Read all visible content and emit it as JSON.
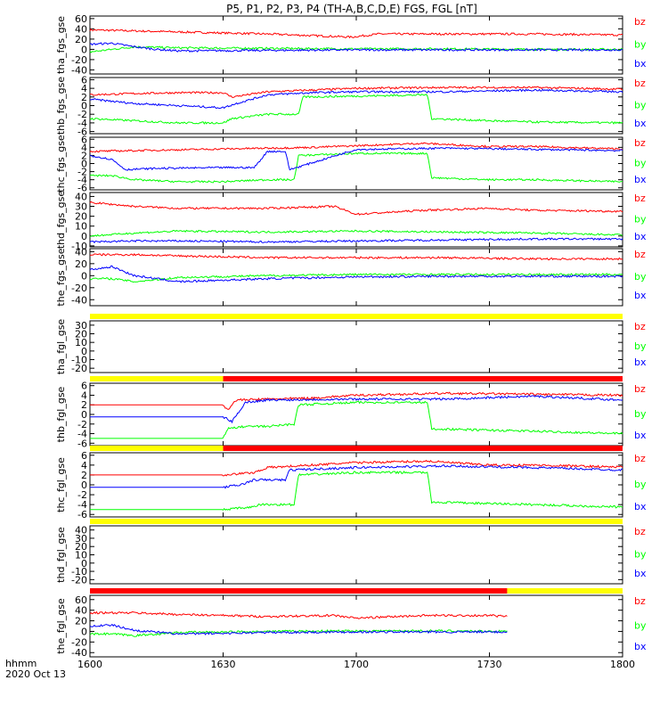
{
  "title": "P5, P1, P2, P3, P4 (TH-A,B,C,D,E) FGS, FGL [nT]",
  "footer": {
    "time_format": "hhmm",
    "date": "2020 Oct 13"
  },
  "colors": {
    "bz": "#ff0000",
    "by": "#00ff00",
    "bx": "#0000ff",
    "bar_yellow": "#ffff00",
    "bar_red": "#ff0000",
    "frame": "#000000"
  },
  "chart_data": {
    "type": "line",
    "x_axis": {
      "tick_labels": [
        "1600",
        "1630",
        "1700",
        "1730",
        "1800"
      ],
      "tick_values_min": [
        0,
        30,
        60,
        90,
        120
      ],
      "range_min": [
        0,
        120
      ]
    },
    "panels": [
      {
        "ylabel": "tha_fgs_gse",
        "ylim": [
          -48,
          65
        ],
        "yticks": [
          60,
          40,
          20,
          0,
          -20,
          -40
        ],
        "ytick_labels": [
          "60",
          "40",
          "20",
          "0",
          "-20",
          "-40"
        ],
        "series": [
          {
            "name": "bz",
            "color": "#ff0000",
            "x": [
              0,
              10,
              20,
              40,
              59,
              65,
              80,
              100,
              120
            ],
            "y": [
              38,
              36,
              34,
              30,
              24,
              30,
              30,
              30,
              28
            ]
          },
          {
            "name": "by",
            "color": "#00ff00",
            "x": [
              0,
              5,
              10,
              20,
              40,
              60,
              80,
              100,
              120
            ],
            "y": [
              -5,
              0,
              5,
              3,
              2,
              1,
              1,
              0,
              0
            ]
          },
          {
            "name": "bx",
            "color": "#0000ff",
            "x": [
              0,
              5,
              10,
              15,
              20,
              40,
              60,
              80,
              100,
              120
            ],
            "y": [
              10,
              12,
              5,
              0,
              -3,
              -2,
              -1,
              -1,
              -1,
              -1
            ]
          }
        ],
        "legend": [
          "bz",
          "by",
          "bx"
        ]
      },
      {
        "ylabel": "thb_fgs_gse",
        "ylim": [
          -6.5,
          6.5
        ],
        "yticks": [
          6,
          4,
          2,
          0,
          -2,
          -4,
          -6
        ],
        "ytick_labels": [
          "6",
          "4",
          "2",
          "0",
          "-2",
          "-4",
          "-6"
        ],
        "series": [
          {
            "name": "bz",
            "color": "#ff0000",
            "x": [
              0,
              10,
              20,
              30,
              32,
              40,
              50,
              60,
              80,
              100,
              120
            ],
            "y": [
              2.5,
              2.8,
              3,
              3,
              2,
              3.2,
              3.6,
              4,
              4.2,
              4.2,
              3.8
            ]
          },
          {
            "name": "by",
            "color": "#00ff00",
            "x": [
              0,
              10,
              20,
              30,
              32,
              40,
              47,
              48,
              60,
              76,
              77,
              90,
              100,
              120
            ],
            "y": [
              -3,
              -3.5,
              -4,
              -4,
              -3,
              -2,
              -2,
              2,
              2.2,
              2.5,
              -3,
              -3.5,
              -3.8,
              -4
            ]
          },
          {
            "name": "bx",
            "color": "#0000ff",
            "x": [
              0,
              10,
              20,
              30,
              33,
              40,
              50,
              60,
              80,
              100,
              120
            ],
            "y": [
              1.5,
              0.5,
              0,
              -0.5,
              0.5,
              2.5,
              3,
              3.2,
              3.2,
              3.6,
              3.2
            ]
          }
        ],
        "legend": [
          "bz",
          "by",
          "bx"
        ]
      },
      {
        "ylabel": "thc_fgs_gse",
        "ylim": [
          -6.5,
          6.5
        ],
        "yticks": [
          6,
          4,
          2,
          0,
          -2,
          -4,
          -6
        ],
        "ytick_labels": [
          "6",
          "4",
          "2",
          "0",
          "-2",
          "-4",
          "-6"
        ],
        "series": [
          {
            "name": "bz",
            "color": "#ff0000",
            "x": [
              0,
              10,
              20,
              30,
              40,
              50,
              60,
              75,
              90,
              100,
              120
            ],
            "y": [
              3,
              3.2,
              3.4,
              3.6,
              3.8,
              4,
              4.4,
              5,
              4.2,
              4.2,
              3.6
            ]
          },
          {
            "name": "by",
            "color": "#00ff00",
            "x": [
              0,
              5,
              10,
              20,
              30,
              40,
              46,
              47,
              60,
              76,
              77,
              90,
              100,
              120
            ],
            "y": [
              -3,
              -3,
              -4,
              -4.5,
              -4.5,
              -4,
              -4,
              2,
              2.5,
              2.5,
              -3.5,
              -4,
              -4,
              -4.5
            ]
          },
          {
            "name": "bx",
            "color": "#0000ff",
            "x": [
              0,
              5,
              8,
              15,
              30,
              37,
              40,
              44,
              45,
              60,
              80,
              100,
              120
            ],
            "y": [
              2,
              1,
              -1.5,
              -1.2,
              -1,
              -1,
              3,
              3,
              -1.5,
              3.5,
              3.8,
              3.5,
              3.2
            ]
          }
        ],
        "legend": [
          "bz",
          "by",
          "bx"
        ]
      },
      {
        "ylabel": "thd_fgs_gse",
        "ylim": [
          -11,
          44
        ],
        "yticks": [
          40,
          30,
          20,
          10,
          0,
          -10
        ],
        "ytick_labels": [
          "40",
          "30",
          "20",
          "10",
          "0",
          "-10"
        ],
        "series": [
          {
            "name": "bz",
            "color": "#ff0000",
            "x": [
              0,
              10,
              20,
              40,
              55,
              60,
              75,
              90,
              100,
              120
            ],
            "y": [
              34,
              30,
              28,
              28,
              30,
              22,
              26,
              28,
              26,
              25
            ]
          },
          {
            "name": "by",
            "color": "#00ff00",
            "x": [
              0,
              10,
              20,
              40,
              60,
              80,
              100,
              120
            ],
            "y": [
              0,
              3,
              5,
              4,
              5,
              4,
              3,
              1
            ]
          },
          {
            "name": "bx",
            "color": "#0000ff",
            "x": [
              0,
              10,
              20,
              40,
              60,
              80,
              100,
              120
            ],
            "y": [
              -6,
              -5,
              -5,
              -6,
              -5,
              -4,
              -3,
              -3
            ]
          }
        ],
        "legend": [
          "bz",
          "by",
          "bx"
        ]
      },
      {
        "ylabel": "the_fgs_gse",
        "ylim": [
          -50,
          45
        ],
        "yticks": [
          40,
          20,
          0,
          -20,
          -40
        ],
        "ytick_labels": [
          "40",
          "20",
          "0",
          "-20",
          "-40"
        ],
        "series": [
          {
            "name": "bz",
            "color": "#ff0000",
            "x": [
              0,
              10,
              20,
              40,
              60,
              80,
              100,
              120
            ],
            "y": [
              35,
              35,
              33,
              30,
              30,
              30,
              28,
              28
            ]
          },
          {
            "name": "by",
            "color": "#00ff00",
            "x": [
              0,
              5,
              10,
              20,
              40,
              60,
              80,
              100,
              120
            ],
            "y": [
              -5,
              -5,
              -10,
              -3,
              0,
              2,
              2,
              2,
              2
            ]
          },
          {
            "name": "bx",
            "color": "#0000ff",
            "x": [
              0,
              5,
              10,
              20,
              40,
              60,
              80,
              100,
              120
            ],
            "y": [
              10,
              15,
              0,
              -10,
              -5,
              -2,
              -1,
              -1,
              -1
            ]
          }
        ],
        "legend": [
          "bz",
          "by",
          "bx"
        ]
      },
      {
        "ylabel": "tha_fgl_gse",
        "ylim": [
          -25,
          35
        ],
        "yticks": [
          30,
          20,
          10,
          0,
          -10,
          -20
        ],
        "ytick_labels": [
          "30",
          "20",
          "10",
          "0",
          "-10",
          "-20"
        ],
        "series": [],
        "legend": [
          "bz",
          "by",
          "bx"
        ],
        "status_bar": [
          {
            "x0": 0,
            "x1": 120,
            "color": "#ffff00"
          }
        ]
      },
      {
        "ylabel": "thb_fgl_gse",
        "ylim": [
          -6.5,
          6.5
        ],
        "yticks": [
          6,
          4,
          2,
          0,
          -2,
          -4,
          -6
        ],
        "ytick_labels": [
          "6",
          "4",
          "2",
          "0",
          "-2",
          "-4",
          "-6"
        ],
        "series": [
          {
            "name": "bz",
            "color": "#ff0000",
            "x": [
              0,
              30,
              31,
              33,
              40,
              50,
              60,
              80,
              100,
              120
            ],
            "y": [
              2,
              2,
              1,
              3,
              3.2,
              3.4,
              4,
              4.4,
              4.2,
              4
            ]
          },
          {
            "name": "by",
            "color": "#00ff00",
            "x": [
              0,
              30,
              31,
              35,
              40,
              46,
              47,
              60,
              76,
              77,
              100,
              120
            ],
            "y": [
              -5,
              -5,
              -3,
              -2.5,
              -2.5,
              -2,
              2,
              2.5,
              2.5,
              -3,
              -3.5,
              -4
            ]
          },
          {
            "name": "bx",
            "color": "#0000ff",
            "x": [
              0,
              30,
              32,
              35,
              40,
              60,
              80,
              100,
              120
            ],
            "y": [
              -0.5,
              -0.5,
              -1.5,
              2.5,
              3,
              3.2,
              3.2,
              3.8,
              3
            ]
          }
        ],
        "legend": [
          "bz",
          "by",
          "bx"
        ],
        "status_bar": [
          {
            "x0": 0,
            "x1": 30,
            "color": "#ffff00"
          },
          {
            "x0": 30,
            "x1": 120,
            "color": "#ff0000"
          }
        ]
      },
      {
        "ylabel": "thc_fgl_gse",
        "ylim": [
          -6.5,
          6.5
        ],
        "yticks": [
          6,
          4,
          2,
          0,
          -2,
          -4,
          -6
        ],
        "ytick_labels": [
          "6",
          "4",
          "2",
          "0",
          "-2",
          "-4",
          "-6"
        ],
        "series": [
          {
            "name": "bz",
            "color": "#ff0000",
            "x": [
              0,
              30,
              37,
              40,
              50,
              60,
              76,
              90,
              100,
              120
            ],
            "y": [
              2,
              2,
              2.5,
              3.5,
              4,
              4.5,
              4.8,
              4,
              4,
              3.6
            ]
          },
          {
            "name": "by",
            "color": "#00ff00",
            "x": [
              0,
              30,
              37,
              38,
              46,
              47,
              60,
              76,
              77,
              100,
              120
            ],
            "y": [
              -5,
              -5,
              -4.5,
              -4,
              -4,
              2,
              2.5,
              2.5,
              -3.5,
              -4,
              -4.5
            ]
          },
          {
            "name": "bx",
            "color": "#0000ff",
            "x": [
              0,
              30,
              34,
              37,
              44,
              45,
              60,
              80,
              100,
              120
            ],
            "y": [
              -0.5,
              -0.5,
              0,
              1,
              1,
              3,
              3.5,
              3.8,
              3.5,
              3
            ]
          }
        ],
        "legend": [
          "bz",
          "by",
          "bx"
        ],
        "status_bar": [
          {
            "x0": 0,
            "x1": 30,
            "color": "#ffff00"
          },
          {
            "x0": 30,
            "x1": 120,
            "color": "#ff0000"
          }
        ]
      },
      {
        "ylabel": "thd_fgl_gse",
        "ylim": [
          -25,
          45
        ],
        "yticks": [
          40,
          30,
          20,
          10,
          0,
          -10,
          -20
        ],
        "ytick_labels": [
          "40",
          "30",
          "20",
          "10",
          "0",
          "-10",
          "-20"
        ],
        "series": [],
        "legend": [
          "bz",
          "by",
          "bx"
        ],
        "status_bar": [
          {
            "x0": 0,
            "x1": 120,
            "color": "#ffff00"
          }
        ]
      },
      {
        "ylabel": "the_fgl_gse",
        "ylim": [
          -48,
          68
        ],
        "yticks": [
          60,
          40,
          20,
          0,
          -20,
          -40
        ],
        "ytick_labels": [
          "60",
          "40",
          "20",
          "0",
          "-20",
          "-40"
        ],
        "series": [
          {
            "name": "bz",
            "color": "#ff0000",
            "x": [
              0,
              10,
              20,
              30,
              40,
              55,
              60,
              75,
              90,
              94
            ],
            "y": [
              35,
              35,
              32,
              30,
              28,
              30,
              25,
              30,
              30,
              28
            ]
          },
          {
            "name": "by",
            "color": "#00ff00",
            "x": [
              0,
              5,
              10,
              20,
              40,
              60,
              80,
              94
            ],
            "y": [
              -5,
              -5,
              -8,
              -2,
              0,
              1,
              1,
              0
            ]
          },
          {
            "name": "bx",
            "color": "#0000ff",
            "x": [
              0,
              5,
              10,
              20,
              40,
              60,
              80,
              94
            ],
            "y": [
              10,
              12,
              2,
              -5,
              -2,
              -1,
              -1,
              -1
            ]
          }
        ],
        "legend": [
          "bz",
          "by",
          "bx"
        ],
        "status_bar": [
          {
            "x0": 0,
            "x1": 94,
            "color": "#ff0000"
          },
          {
            "x0": 94,
            "x1": 120,
            "color": "#ffff00"
          }
        ]
      }
    ]
  }
}
